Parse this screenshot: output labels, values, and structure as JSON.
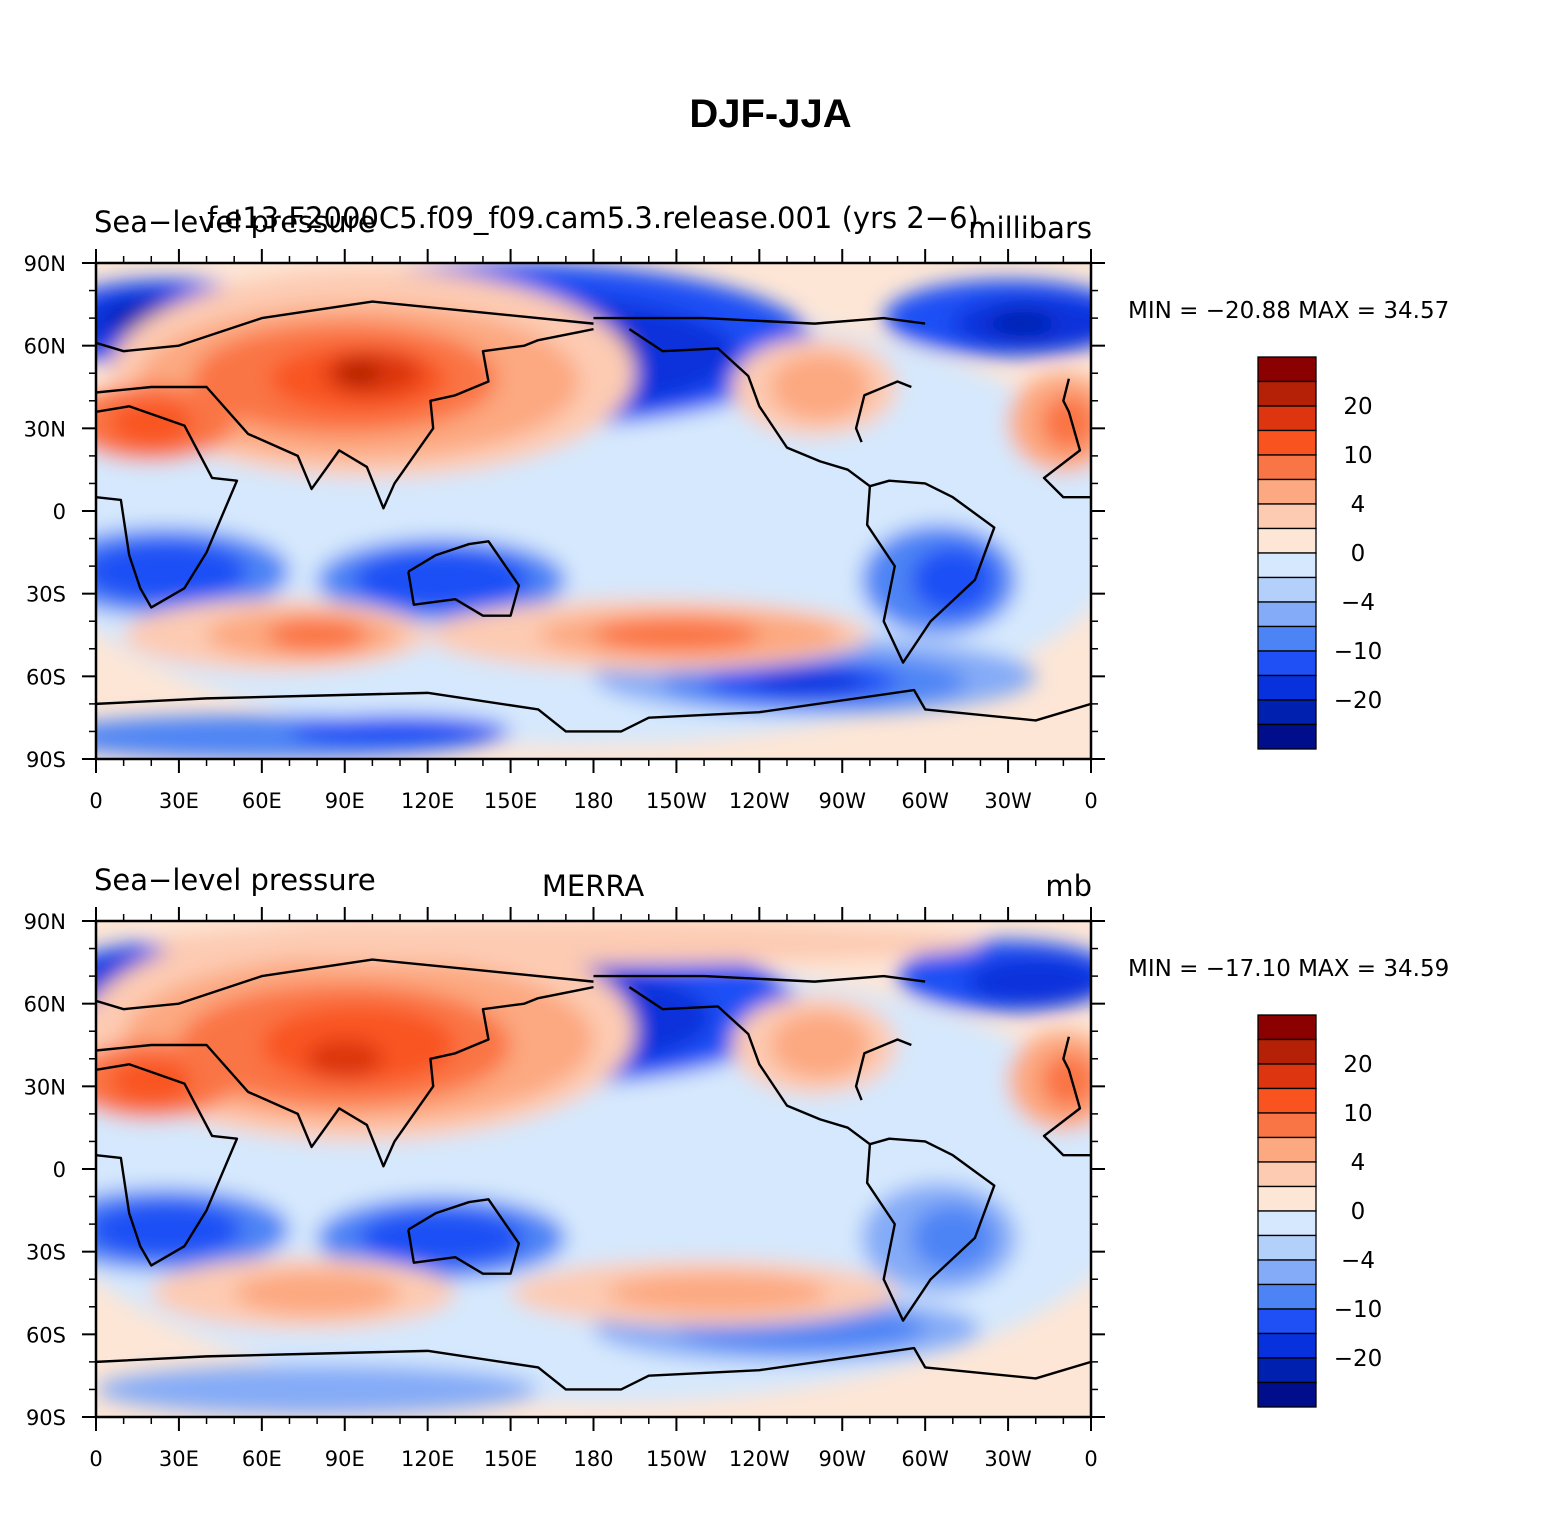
{
  "title": "DJF-JJA",
  "lon_ticks": [
    "0",
    "30E",
    "60E",
    "90E",
    "120E",
    "150E",
    "180",
    "150W",
    "120W",
    "90W",
    "60W",
    "30W",
    "0"
  ],
  "lat_ticks": [
    "90N",
    "60N",
    "30N",
    "0",
    "30S",
    "60S",
    "90S"
  ],
  "colorbar": {
    "labels": [
      "20",
      "10",
      "4",
      "0",
      "−4",
      "−10",
      "−20"
    ],
    "colors": [
      "#8b0000",
      "#b52106",
      "#dc3510",
      "#f95420",
      "#fa7545",
      "#fca880",
      "#fdcbb2",
      "#fde6d6",
      "#d5e8fd",
      "#b3d0fb",
      "#84abf7",
      "#4d84f5",
      "#1f50f5",
      "#0731dc",
      "#0020b0",
      "#000e8c"
    ]
  },
  "panels": [
    {
      "left_title": "Sea−level pressure",
      "center_title": "f.e13.F2000C5.f09_f09.cam5.3.release.001  (yrs  2−6)",
      "right_title": "millibars",
      "stats": "MIN = −20.88  MAX =   34.57"
    },
    {
      "left_title": "Sea−level pressure",
      "center_title": "MERRA",
      "right_title": "mb",
      "stats": "MIN = −17.10  MAX =   34.59"
    }
  ]
}
